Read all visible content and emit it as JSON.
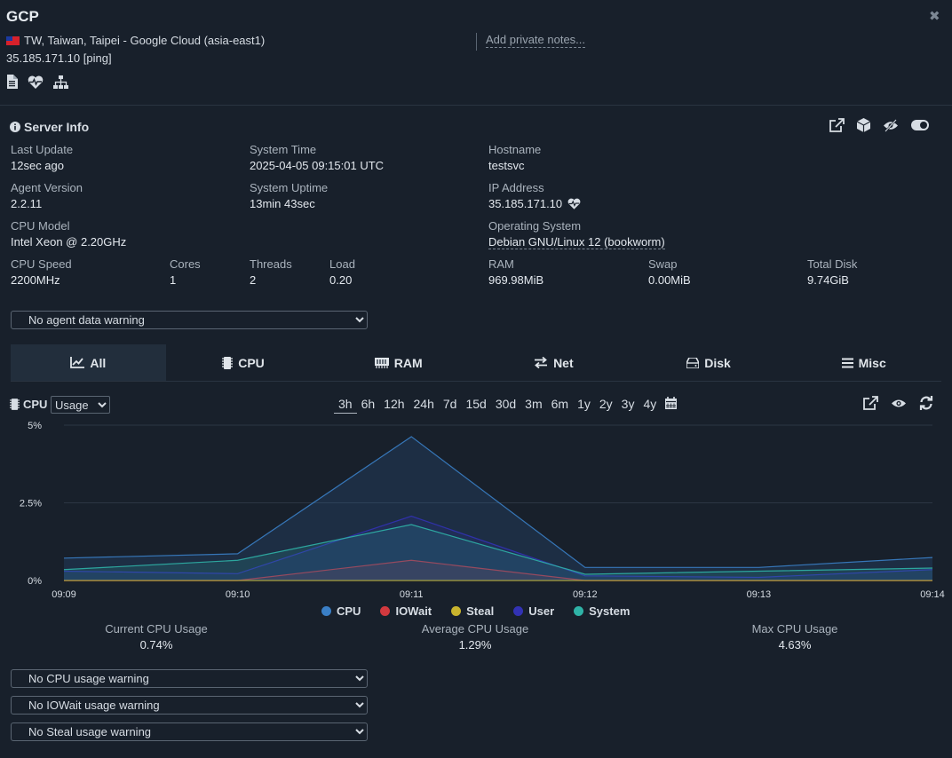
{
  "header": {
    "title": "GCP",
    "location": "TW, Taiwan, Taipei - Google Cloud (asia-east1)",
    "ip": "35.185.171.10",
    "ping_label": "[ping]",
    "notes_placeholder": "Add private notes...",
    "close_glyph": "✖"
  },
  "server_info": {
    "title": "Server Info",
    "last_update": {
      "label": "Last Update",
      "value": "12sec ago"
    },
    "system_time": {
      "label": "System Time",
      "value": "2025-04-05 09:15:01 UTC"
    },
    "hostname": {
      "label": "Hostname",
      "value": "testsvc"
    },
    "agent_version": {
      "label": "Agent Version",
      "value": "2.2.11"
    },
    "system_uptime": {
      "label": "System Uptime",
      "value": "13min 43sec"
    },
    "ip_address": {
      "label": "IP Address",
      "value": "35.185.171.10"
    },
    "cpu_model": {
      "label": "CPU Model",
      "value": "Intel Xeon @ 2.20GHz"
    },
    "os": {
      "label": "Operating System",
      "value": "Debian GNU/Linux 12 (bookworm)"
    },
    "cpu_speed": {
      "label": "CPU Speed",
      "value": "2200MHz"
    },
    "cores": {
      "label": "Cores",
      "value": "1"
    },
    "threads": {
      "label": "Threads",
      "value": "2"
    },
    "load": {
      "label": "Load",
      "value": "0.20"
    },
    "ram": {
      "label": "RAM",
      "value": "969.98MiB"
    },
    "swap": {
      "label": "Swap",
      "value": "0.00MiB"
    },
    "total_disk": {
      "label": "Total Disk",
      "value": "9.74GiB"
    }
  },
  "agent_warning": "No agent data warning",
  "tabs": [
    {
      "label": "All",
      "icon": "chart-line-icon",
      "active": true
    },
    {
      "label": "CPU",
      "icon": "microchip-icon",
      "active": false
    },
    {
      "label": "RAM",
      "icon": "memory-icon",
      "active": false
    },
    {
      "label": "Net",
      "icon": "exchange-icon",
      "active": false
    },
    {
      "label": "Disk",
      "icon": "hdd-icon",
      "active": false
    },
    {
      "label": "Misc",
      "icon": "bars-icon",
      "active": false
    }
  ],
  "cpu_panel": {
    "label": "CPU",
    "mode": "Usage",
    "ranges": [
      "3h",
      "6h",
      "12h",
      "24h",
      "7d",
      "15d",
      "30d",
      "3m",
      "6m",
      "1y",
      "2y",
      "3y",
      "4y"
    ],
    "active_range": "3h"
  },
  "chart_data": {
    "type": "area",
    "x": [
      "09:09",
      "09:10",
      "09:11",
      "09:12",
      "09:13",
      "09:14"
    ],
    "y_ticks": [
      "0%",
      "2.5%",
      "5%"
    ],
    "ylim": [
      0,
      5
    ],
    "series": [
      {
        "name": "CPU",
        "color": "#3a7fc6",
        "values": [
          0.72,
          0.86,
          4.63,
          0.42,
          0.42,
          0.74
        ]
      },
      {
        "name": "IOWait",
        "color": "#d2393f",
        "values": [
          0.0,
          0.0,
          0.65,
          0.0,
          0.0,
          0.0
        ]
      },
      {
        "name": "Steal",
        "color": "#c9b42e",
        "values": [
          0.0,
          0.0,
          0.0,
          0.0,
          0.0,
          0.0
        ]
      },
      {
        "name": "User",
        "color": "#3232b4",
        "values": [
          0.3,
          0.22,
          2.07,
          0.15,
          0.1,
          0.35
        ]
      },
      {
        "name": "System",
        "color": "#2fb3a7",
        "values": [
          0.35,
          0.65,
          1.8,
          0.2,
          0.3,
          0.4
        ]
      }
    ],
    "grid": true
  },
  "stats": {
    "current": {
      "label": "Current CPU Usage",
      "value": "0.74%"
    },
    "average": {
      "label": "Average CPU Usage",
      "value": "1.29%"
    },
    "max": {
      "label": "Max CPU Usage",
      "value": "4.63%"
    }
  },
  "warnings": {
    "cpu": "No CPU usage warning",
    "iowait": "No IOWait usage warning",
    "steal": "No Steal usage warning"
  }
}
